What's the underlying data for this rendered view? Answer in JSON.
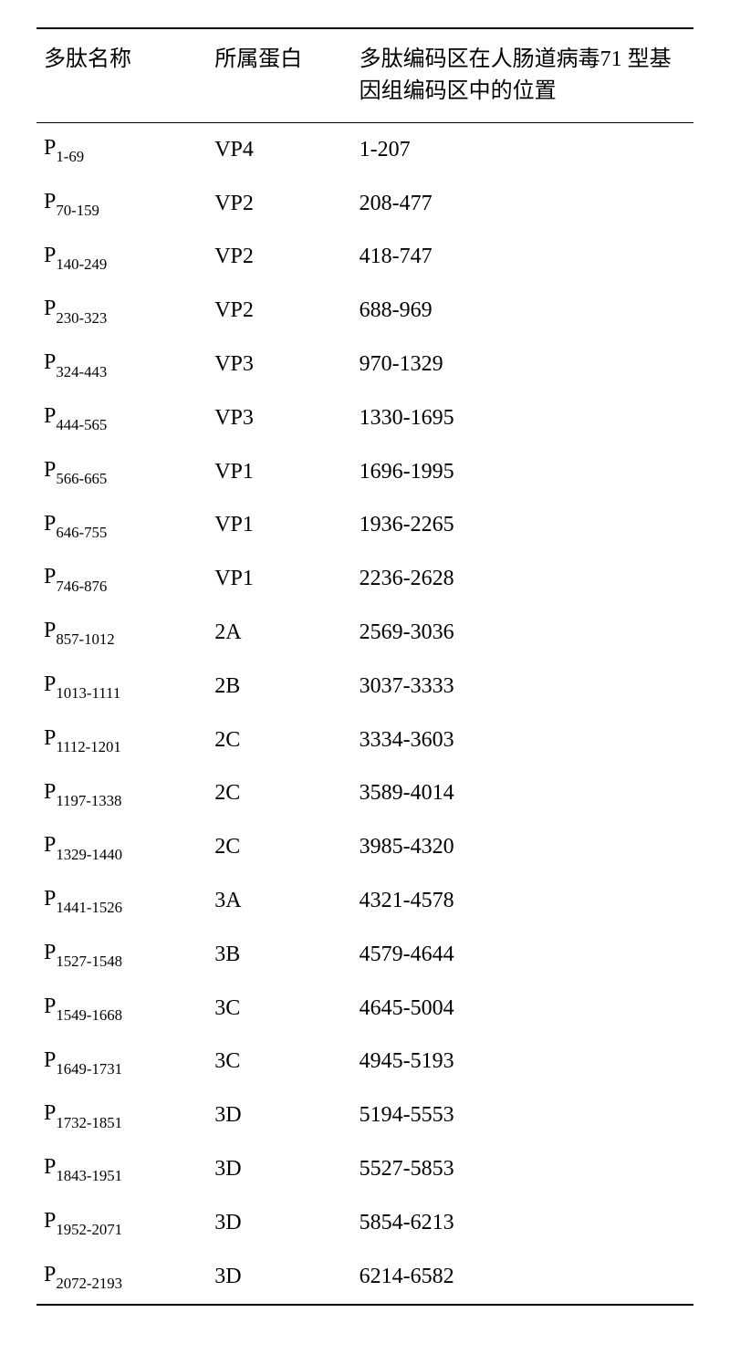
{
  "table": {
    "columns": [
      "多肽名称",
      "所属蛋白",
      "多肽编码区在人肠道病毒71 型基因组编码区中的位置"
    ],
    "rows": [
      {
        "pprefix": "P",
        "psub": "1-69",
        "protein": "VP4",
        "position": "1-207"
      },
      {
        "pprefix": "P",
        "psub": "70-159",
        "protein": "VP2",
        "position": "208-477"
      },
      {
        "pprefix": "P",
        "psub": "140-249",
        "protein": "VP2",
        "position": "418-747"
      },
      {
        "pprefix": "P",
        "psub": "230-323",
        "protein": "VP2",
        "position": "688-969"
      },
      {
        "pprefix": "P",
        "psub": "324-443",
        "protein": "VP3",
        "position": "970-1329"
      },
      {
        "pprefix": "P",
        "psub": "444-565",
        "protein": "VP3",
        "position": "1330-1695"
      },
      {
        "pprefix": "P",
        "psub": "566-665",
        "protein": "VP1",
        "position": "1696-1995"
      },
      {
        "pprefix": "P",
        "psub": "646-755",
        "protein": "VP1",
        "position": "1936-2265"
      },
      {
        "pprefix": "P",
        "psub": "746-876",
        "protein": "VP1",
        "position": "2236-2628"
      },
      {
        "pprefix": "P",
        "psub": "857-1012",
        "protein": "2A",
        "position": "2569-3036"
      },
      {
        "pprefix": "P",
        "psub": "1013-1111",
        "protein": "2B",
        "position": "3037-3333"
      },
      {
        "pprefix": "P",
        "psub": "1112-1201",
        "protein": "2C",
        "position": "3334-3603"
      },
      {
        "pprefix": "P",
        "psub": "1197-1338",
        "protein": "2C",
        "position": "3589-4014"
      },
      {
        "pprefix": "P",
        "psub": "1329-1440",
        "protein": "2C",
        "position": "3985-4320"
      },
      {
        "pprefix": "P",
        "psub": "1441-1526",
        "protein": "3A",
        "position": "4321-4578"
      },
      {
        "pprefix": "P",
        "psub": "1527-1548",
        "protein": "3B",
        "position": "4579-4644"
      },
      {
        "pprefix": "P",
        "psub": "1549-1668",
        "protein": "3C",
        "position": "4645-5004"
      },
      {
        "pprefix": "P",
        "psub": "1649-1731",
        "protein": "3C",
        "position": "4945-5193"
      },
      {
        "pprefix": "P",
        "psub": "1732-1851",
        "protein": "3D",
        "position": "5194-5553"
      },
      {
        "pprefix": "P",
        "psub": "1843-1951",
        "protein": "3D",
        "position": "5527-5853"
      },
      {
        "pprefix": "P",
        "psub": "1952-2071",
        "protein": "3D",
        "position": "5854-6213"
      },
      {
        "pprefix": "P",
        "psub": "2072-2193",
        "protein": "3D",
        "position": "6214-6582"
      }
    ],
    "style": {
      "border_color": "#000000",
      "top_border_width": 2,
      "header_bottom_border_width": 1.5,
      "bottom_border_width": 2,
      "font_size": 24,
      "sub_font_scale": 0.7,
      "background_color": "#ffffff",
      "text_color": "#000000"
    }
  }
}
